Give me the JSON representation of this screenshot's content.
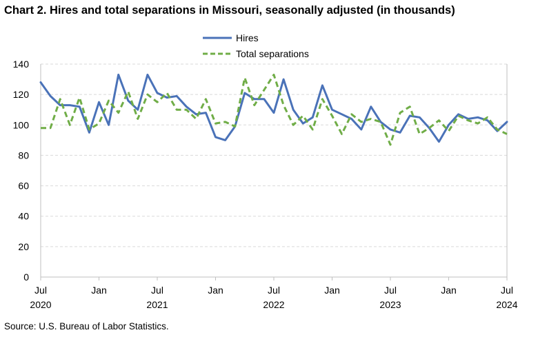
{
  "title": "Chart 2. Hires and total separations in Missouri, seasonally adjusted (in thousands)",
  "source": "Source: U.S. Bureau of Labor Statistics.",
  "colors": {
    "hires": "#4a72b8",
    "separations": "#70ad47",
    "grid": "#d9d9d9",
    "axis": "#bfbfbf"
  },
  "chart_data": {
    "type": "line",
    "title": "Chart 2. Hires and total separations in Missouri, seasonally adjusted (in thousands)",
    "xlabel": "",
    "ylabel": "",
    "ylim": [
      0,
      140
    ],
    "yticks": [
      0,
      20,
      40,
      60,
      80,
      100,
      120,
      140
    ],
    "grid": "horizontal dashed",
    "legend_position": "top-center",
    "x_tick_labels": [
      {
        "month": "Jul",
        "year": "2020"
      },
      {
        "month": "Jan",
        "year": ""
      },
      {
        "month": "Jul",
        "year": "2021"
      },
      {
        "month": "Jan",
        "year": ""
      },
      {
        "month": "Jul",
        "year": "2022"
      },
      {
        "month": "Jan",
        "year": ""
      },
      {
        "month": "Jul",
        "year": "2023"
      },
      {
        "month": "Jan",
        "year": ""
      },
      {
        "month": "Jul",
        "year": "2024"
      }
    ],
    "x": [
      "2020-07",
      "2020-08",
      "2020-09",
      "2020-10",
      "2020-11",
      "2020-12",
      "2021-01",
      "2021-02",
      "2021-03",
      "2021-04",
      "2021-05",
      "2021-06",
      "2021-07",
      "2021-08",
      "2021-09",
      "2021-10",
      "2021-11",
      "2021-12",
      "2022-01",
      "2022-02",
      "2022-03",
      "2022-04",
      "2022-05",
      "2022-06",
      "2022-07",
      "2022-08",
      "2022-09",
      "2022-10",
      "2022-11",
      "2022-12",
      "2023-01",
      "2023-02",
      "2023-03",
      "2023-04",
      "2023-05",
      "2023-06",
      "2023-07",
      "2023-08",
      "2023-09",
      "2023-10",
      "2023-11",
      "2023-12",
      "2024-01",
      "2024-02",
      "2024-03",
      "2024-04",
      "2024-05",
      "2024-06",
      "2024-07"
    ],
    "series": [
      {
        "name": "Hires",
        "style": "solid",
        "values": [
          128,
          119,
          113,
          113,
          112,
          95,
          115,
          100,
          133,
          116,
          110,
          133,
          121,
          118,
          119,
          112,
          107,
          108,
          92,
          90,
          99,
          121,
          117,
          117,
          108,
          130,
          110,
          101,
          105,
          126,
          110,
          107,
          104,
          97,
          112,
          102,
          97,
          95,
          106,
          105,
          98,
          89,
          100,
          107,
          104,
          105,
          103,
          96,
          102
        ]
      },
      {
        "name": "Total separations",
        "style": "dashed",
        "values": [
          98,
          98,
          117,
          100,
          118,
          97,
          101,
          116,
          108,
          122,
          104,
          120,
          115,
          121,
          110,
          110,
          104,
          117,
          101,
          102,
          99,
          131,
          113,
          123,
          133,
          113,
          100,
          106,
          97,
          117,
          106,
          94,
          107,
          102,
          104,
          102,
          87,
          108,
          112,
          94,
          98,
          103,
          96,
          106,
          103,
          101,
          105,
          97,
          94
        ]
      }
    ]
  }
}
